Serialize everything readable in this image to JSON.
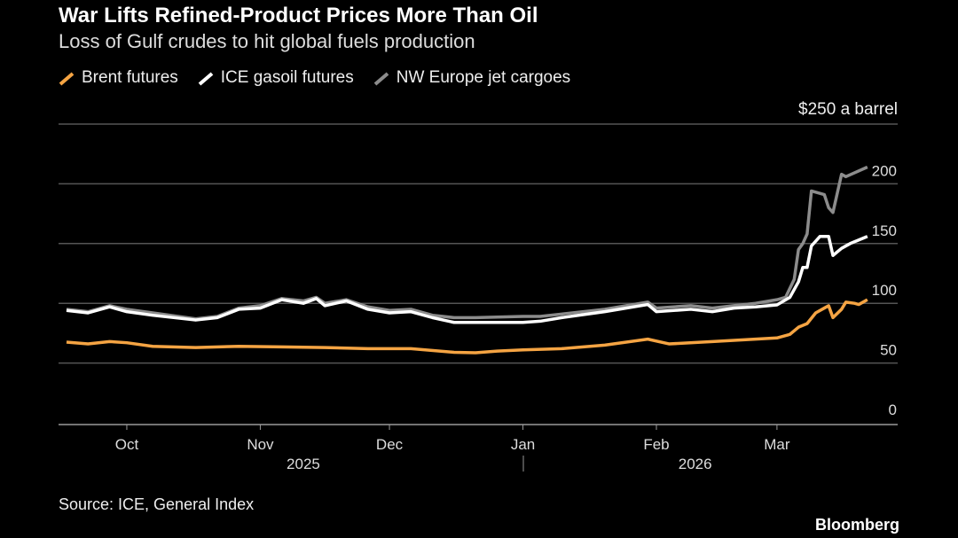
{
  "title": "War Lifts Refined-Product Prices More Than Oil",
  "subtitle": "Loss of Gulf crudes to hit global fuels production",
  "source": "Source: ICE, General Index",
  "brand": "Bloomberg",
  "chart_data": {
    "type": "line",
    "title": "War Lifts Refined-Product Prices More Than Oil",
    "ylabel": "$250 a barrel",
    "ylim": [
      0,
      250
    ],
    "yticks": [
      0,
      50,
      100,
      150,
      200
    ],
    "xticks": [
      {
        "label": "Oct",
        "day": 14
      },
      {
        "label": "Nov",
        "day": 45
      },
      {
        "label": "Dec",
        "day": 75
      },
      {
        "label": "Jan",
        "day": 106
      },
      {
        "label": "Feb",
        "day": 137
      },
      {
        "label": "Mar",
        "day": 165
      }
    ],
    "year_labels": [
      {
        "label": "2025",
        "day": 55
      },
      {
        "label": "2026",
        "day": 146
      }
    ],
    "x_start": "2025-09-17",
    "x_days": [
      0,
      182
    ],
    "series": [
      {
        "name": "Brent futures",
        "color": "#f5a443",
        "points": [
          [
            0,
            67.5
          ],
          [
            5,
            66
          ],
          [
            10,
            68
          ],
          [
            14,
            67
          ],
          [
            20,
            64
          ],
          [
            30,
            63
          ],
          [
            40,
            64
          ],
          [
            50,
            63.5
          ],
          [
            60,
            63
          ],
          [
            70,
            62
          ],
          [
            80,
            62
          ],
          [
            90,
            59
          ],
          [
            95,
            58.6
          ],
          [
            100,
            60
          ],
          [
            106,
            61
          ],
          [
            115,
            62
          ],
          [
            125,
            65
          ],
          [
            135,
            70
          ],
          [
            140,
            66
          ],
          [
            150,
            68
          ],
          [
            160,
            70
          ],
          [
            165,
            71
          ],
          [
            168,
            74
          ],
          [
            170,
            80
          ],
          [
            172,
            83
          ],
          [
            174,
            92
          ],
          [
            176,
            96
          ],
          [
            177,
            98
          ],
          [
            178,
            88
          ],
          [
            180,
            95
          ],
          [
            181,
            101
          ],
          [
            183,
            100
          ],
          [
            184,
            99
          ],
          [
            186,
            103
          ]
        ]
      },
      {
        "name": "ICE gasoil futures",
        "color": "#ffffff",
        "points": [
          [
            0,
            94
          ],
          [
            5,
            92
          ],
          [
            10,
            97
          ],
          [
            14,
            93
          ],
          [
            20,
            90
          ],
          [
            30,
            86
          ],
          [
            35,
            88
          ],
          [
            40,
            95
          ],
          [
            45,
            96
          ],
          [
            50,
            103
          ],
          [
            55,
            100
          ],
          [
            58,
            104
          ],
          [
            60,
            98
          ],
          [
            65,
            102
          ],
          [
            70,
            95
          ],
          [
            75,
            92
          ],
          [
            80,
            93
          ],
          [
            85,
            88
          ],
          [
            90,
            84
          ],
          [
            95,
            84
          ],
          [
            106,
            84
          ],
          [
            110,
            85
          ],
          [
            115,
            88
          ],
          [
            125,
            93
          ],
          [
            135,
            99
          ],
          [
            137,
            93
          ],
          [
            145,
            95
          ],
          [
            150,
            93
          ],
          [
            155,
            96
          ],
          [
            160,
            97
          ],
          [
            165,
            98.7
          ],
          [
            168,
            105
          ],
          [
            170,
            118
          ],
          [
            171,
            130
          ],
          [
            172,
            130
          ],
          [
            173,
            148
          ],
          [
            175,
            156
          ],
          [
            177,
            156
          ],
          [
            178,
            140
          ],
          [
            180,
            146
          ],
          [
            182,
            150
          ],
          [
            186,
            156
          ]
        ]
      },
      {
        "name": "NW Europe jet cargoes",
        "color": "#8c8c8c",
        "points": [
          [
            0,
            95
          ],
          [
            5,
            93
          ],
          [
            10,
            98
          ],
          [
            14,
            95
          ],
          [
            20,
            92
          ],
          [
            30,
            87
          ],
          [
            35,
            89
          ],
          [
            40,
            96
          ],
          [
            45,
            98
          ],
          [
            50,
            104
          ],
          [
            55,
            102
          ],
          [
            58,
            105
          ],
          [
            60,
            100
          ],
          [
            65,
            103
          ],
          [
            70,
            97
          ],
          [
            75,
            94
          ],
          [
            80,
            95
          ],
          [
            85,
            90
          ],
          [
            90,
            88
          ],
          [
            95,
            88
          ],
          [
            106,
            89
          ],
          [
            110,
            89
          ],
          [
            115,
            91
          ],
          [
            125,
            95
          ],
          [
            135,
            101
          ],
          [
            137,
            96
          ],
          [
            145,
            98
          ],
          [
            150,
            96
          ],
          [
            155,
            98
          ],
          [
            160,
            100
          ],
          [
            165,
            103
          ],
          [
            167,
            105
          ],
          [
            169,
            120
          ],
          [
            170,
            145
          ],
          [
            171,
            150
          ],
          [
            172,
            158
          ],
          [
            173,
            194
          ],
          [
            176,
            191
          ],
          [
            177,
            180
          ],
          [
            178,
            176
          ],
          [
            180,
            208
          ],
          [
            181,
            206
          ],
          [
            186,
            214
          ]
        ]
      }
    ]
  }
}
